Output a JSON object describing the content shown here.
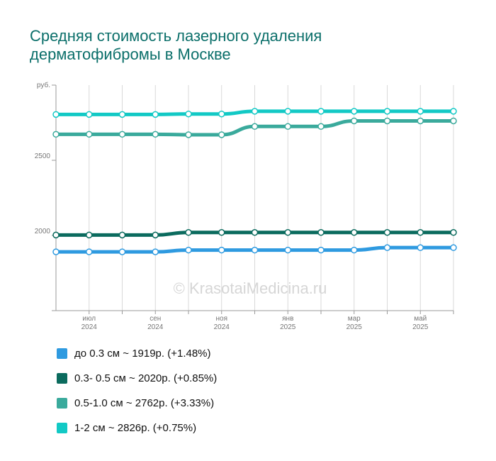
{
  "title_lines": [
    "Средняя стоимость лазерного удаления",
    "дерматофибромы в Москве"
  ],
  "watermark": "© KrasotaiMedicina.ru",
  "chart_data": {
    "type": "line",
    "ylabel": "руб.",
    "ylim": [
      1500,
      3000
    ],
    "yticks": [
      2000,
      2500
    ],
    "x": [
      "2024-05",
      "2024-06",
      "2024-07",
      "2024-08",
      "2024-09",
      "2024-10",
      "2024-11",
      "2024-12",
      "2025-01",
      "2025-02",
      "2025-03",
      "2025-04",
      "2025-05"
    ],
    "xtick_labels": [
      {
        "month": "июл",
        "year": "2024",
        "index": 1
      },
      {
        "month": "сен",
        "year": "2024",
        "index": 3
      },
      {
        "month": "ноя",
        "year": "2024",
        "index": 5
      },
      {
        "month": "янв",
        "year": "2025",
        "index": 7
      },
      {
        "month": "мар",
        "year": "2025",
        "index": 9
      },
      {
        "month": "май",
        "year": "2025",
        "index": 11
      }
    ],
    "grid": "vertical",
    "legend_position": "bottom",
    "series": [
      {
        "name": "до 0.3 см",
        "legend": "до 0.3 см ~ 1919р. (+1.48%)",
        "color": "#2e9ae0",
        "values": [
          1891,
          1891,
          1891,
          1891,
          1903,
          1903,
          1903,
          1903,
          1903,
          1903,
          1919,
          1919,
          1919
        ]
      },
      {
        "name": "0.3- 0.5 см",
        "legend": "0.3- 0.5 см ~ 2020р. (+0.85%)",
        "color": "#0b6b5e",
        "values": [
          2003,
          2003,
          2003,
          2003,
          2020,
          2020,
          2020,
          2020,
          2020,
          2020,
          2020,
          2020,
          2020
        ]
      },
      {
        "name": "0.5-1.0 см",
        "legend": "0.5-1.0 см ~ 2762р. (+3.33%)",
        "color": "#3aaa9c",
        "values": [
          2673,
          2673,
          2673,
          2673,
          2670,
          2670,
          2725,
          2725,
          2725,
          2762,
          2762,
          2762,
          2762
        ]
      },
      {
        "name": "1-2 см",
        "legend": "1-2 см ~ 2826р. (+0.75%)",
        "color": "#12c9c5",
        "values": [
          2805,
          2805,
          2805,
          2805,
          2808,
          2808,
          2826,
          2826,
          2826,
          2826,
          2826,
          2826,
          2826
        ]
      }
    ]
  }
}
